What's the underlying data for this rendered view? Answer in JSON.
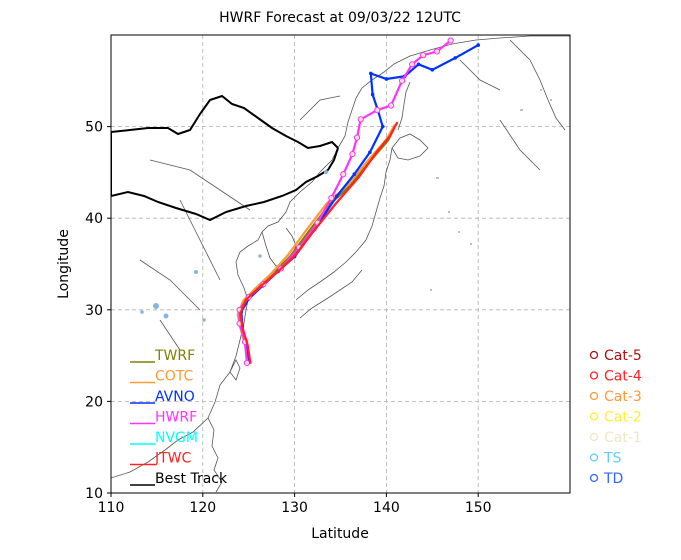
{
  "chart_data": {
    "type": "line",
    "title": "HWRF Forecast at 09/03/22 12UTC",
    "xlabel": "Latitude",
    "ylabel": "Longitude",
    "xlim": [
      110,
      160
    ],
    "ylim": [
      10,
      60
    ],
    "xticks": [
      "110",
      "120",
      "130",
      "140",
      "150"
    ],
    "yticks": [
      "10",
      "20",
      "30",
      "40",
      "50"
    ],
    "grid": true,
    "legend_position": "lower-left",
    "series": [
      {
        "name": "TWRF",
        "color": "#808000",
        "points": [
          [
            125.0,
            24.2
          ],
          [
            124.8,
            26.0
          ],
          [
            124.2,
            27.8
          ],
          [
            123.9,
            29.2
          ],
          [
            124.5,
            30.8
          ],
          [
            125.8,
            32.2
          ],
          [
            127.5,
            33.8
          ],
          [
            129.5,
            35.8
          ],
          [
            131.5,
            38.5
          ],
          [
            133.8,
            41.5
          ],
          [
            136.0,
            43.5
          ],
          [
            138.2,
            46.2
          ],
          [
            140.2,
            48.5
          ],
          [
            141.0,
            50.2
          ]
        ]
      },
      {
        "name": "COTC",
        "color": "#ff9933",
        "points": [
          [
            124.9,
            24.2
          ],
          [
            124.6,
            26.2
          ],
          [
            124.1,
            28.0
          ],
          [
            123.8,
            29.5
          ],
          [
            124.4,
            31.0
          ],
          [
            125.7,
            32.3
          ],
          [
            127.4,
            33.9
          ],
          [
            129.2,
            35.9
          ],
          [
            131.2,
            38.6
          ],
          [
            133.5,
            41.6
          ],
          [
            135.8,
            43.6
          ],
          [
            138.0,
            46.3
          ],
          [
            140.0,
            48.6
          ],
          [
            140.9,
            50.2
          ]
        ]
      },
      {
        "name": "AVNO",
        "color": "#0033ff",
        "points": [
          [
            125.1,
            24.3
          ],
          [
            124.7,
            26.5
          ],
          [
            124.3,
            28.2
          ],
          [
            124.2,
            29.8
          ],
          [
            125.0,
            31.2
          ],
          [
            126.5,
            32.6
          ],
          [
            128.2,
            34.2
          ],
          [
            130.0,
            35.8
          ],
          [
            132.2,
            38.8
          ],
          [
            134.6,
            42.4
          ],
          [
            136.5,
            44.8
          ],
          [
            138.2,
            47.2
          ],
          [
            139.6,
            50.0
          ],
          [
            139.1,
            51.7
          ],
          [
            138.5,
            53.5
          ],
          [
            138.3,
            55.8
          ],
          [
            140.0,
            55.2
          ],
          [
            142.0,
            55.5
          ],
          [
            143.5,
            56.8
          ],
          [
            145.0,
            56.2
          ],
          [
            147.5,
            57.5
          ],
          [
            150.0,
            58.9
          ]
        ]
      },
      {
        "name": "HWRF",
        "color": "#ff33ff",
        "points": [
          [
            124.8,
            24.2
          ],
          [
            124.6,
            26.5
          ],
          [
            124.0,
            28.5
          ],
          [
            124.0,
            30.0
          ],
          [
            125.0,
            31.4
          ],
          [
            126.6,
            32.8
          ],
          [
            128.5,
            34.5
          ],
          [
            130.5,
            36.8
          ],
          [
            132.5,
            39.5
          ],
          [
            134.0,
            42.2
          ],
          [
            135.3,
            44.8
          ],
          [
            136.3,
            47.0
          ],
          [
            136.8,
            48.8
          ],
          [
            137.2,
            50.8
          ],
          [
            139.0,
            51.8
          ],
          [
            140.5,
            52.3
          ],
          [
            141.7,
            55.0
          ],
          [
            142.8,
            56.8
          ],
          [
            144.0,
            57.8
          ],
          [
            145.5,
            58.2
          ],
          [
            147.0,
            59.4
          ]
        ]
      },
      {
        "name": "NVGM",
        "color": "#00ffff",
        "points": []
      },
      {
        "name": "JTWC",
        "color": "#ff2222",
        "points": [
          [
            125.2,
            24.1
          ],
          [
            124.9,
            26.1
          ],
          [
            124.3,
            28.1
          ],
          [
            124.1,
            29.6
          ],
          [
            124.7,
            31.1
          ],
          [
            126.2,
            32.5
          ],
          [
            128.0,
            34.0
          ],
          [
            130.0,
            35.9
          ],
          [
            132.0,
            38.5
          ],
          [
            134.5,
            41.6
          ],
          [
            137.0,
            44.5
          ],
          [
            139.0,
            47.3
          ],
          [
            140.4,
            49.0
          ],
          [
            141.2,
            50.5
          ]
        ]
      },
      {
        "name": "Best Track",
        "color": "#000000",
        "points": []
      }
    ],
    "categories": [
      {
        "label": "Cat-5",
        "color": "#aa1111"
      },
      {
        "label": "Cat-4",
        "color": "#ff2222"
      },
      {
        "label": "Cat-3",
        "color": "#ff9933"
      },
      {
        "label": "Cat-2",
        "color": "#ffee33"
      },
      {
        "label": "Cat-1",
        "color": "#f0e6c8"
      },
      {
        "label": "TS",
        "color": "#66ccff"
      },
      {
        "label": "TD",
        "color": "#3366ff"
      }
    ]
  }
}
